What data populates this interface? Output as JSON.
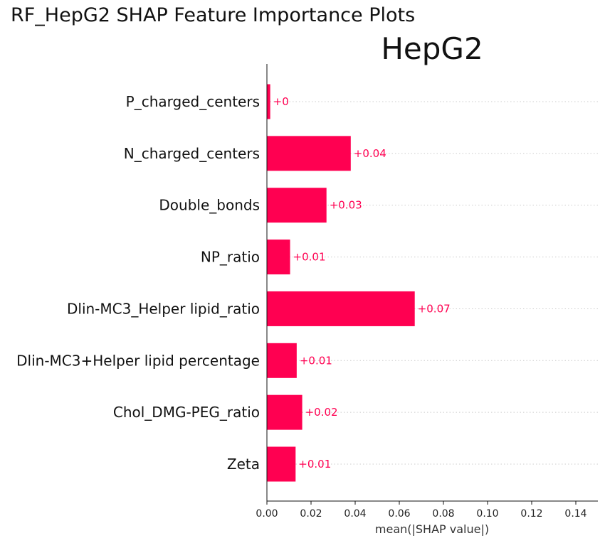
{
  "figure": {
    "suptitle": "RF_HepG2 SHAP Feature Importance Plots"
  },
  "chart_data": {
    "type": "bar",
    "orientation": "horizontal",
    "title": "HepG2",
    "xlabel": "mean(|SHAP value|)",
    "ylabel": "",
    "xlim": [
      0,
      0.15
    ],
    "xticks": [
      "0.00",
      "0.02",
      "0.04",
      "0.06",
      "0.08",
      "0.10",
      "0.12",
      "0.14"
    ],
    "categories": [
      "P_charged_centers",
      "N_charged_centers",
      "Double_bonds",
      "NP_ratio",
      "Dlin-MC3_Helper lipid_ratio",
      "Dlin-MC3+Helper lipid percentage",
      "Chol_DMG-PEG_ratio",
      "Zeta"
    ],
    "values": [
      0.0015,
      0.038,
      0.027,
      0.0105,
      0.067,
      0.0135,
      0.016,
      0.013
    ],
    "value_labels": [
      "+0",
      "+0.04",
      "+0.03",
      "+0.01",
      "+0.07",
      "+0.01",
      "+0.02",
      "+0.01"
    ],
    "bar_color": "#ff0051",
    "label_color": "#ff0051",
    "gridlines": "dotted horizontal"
  }
}
